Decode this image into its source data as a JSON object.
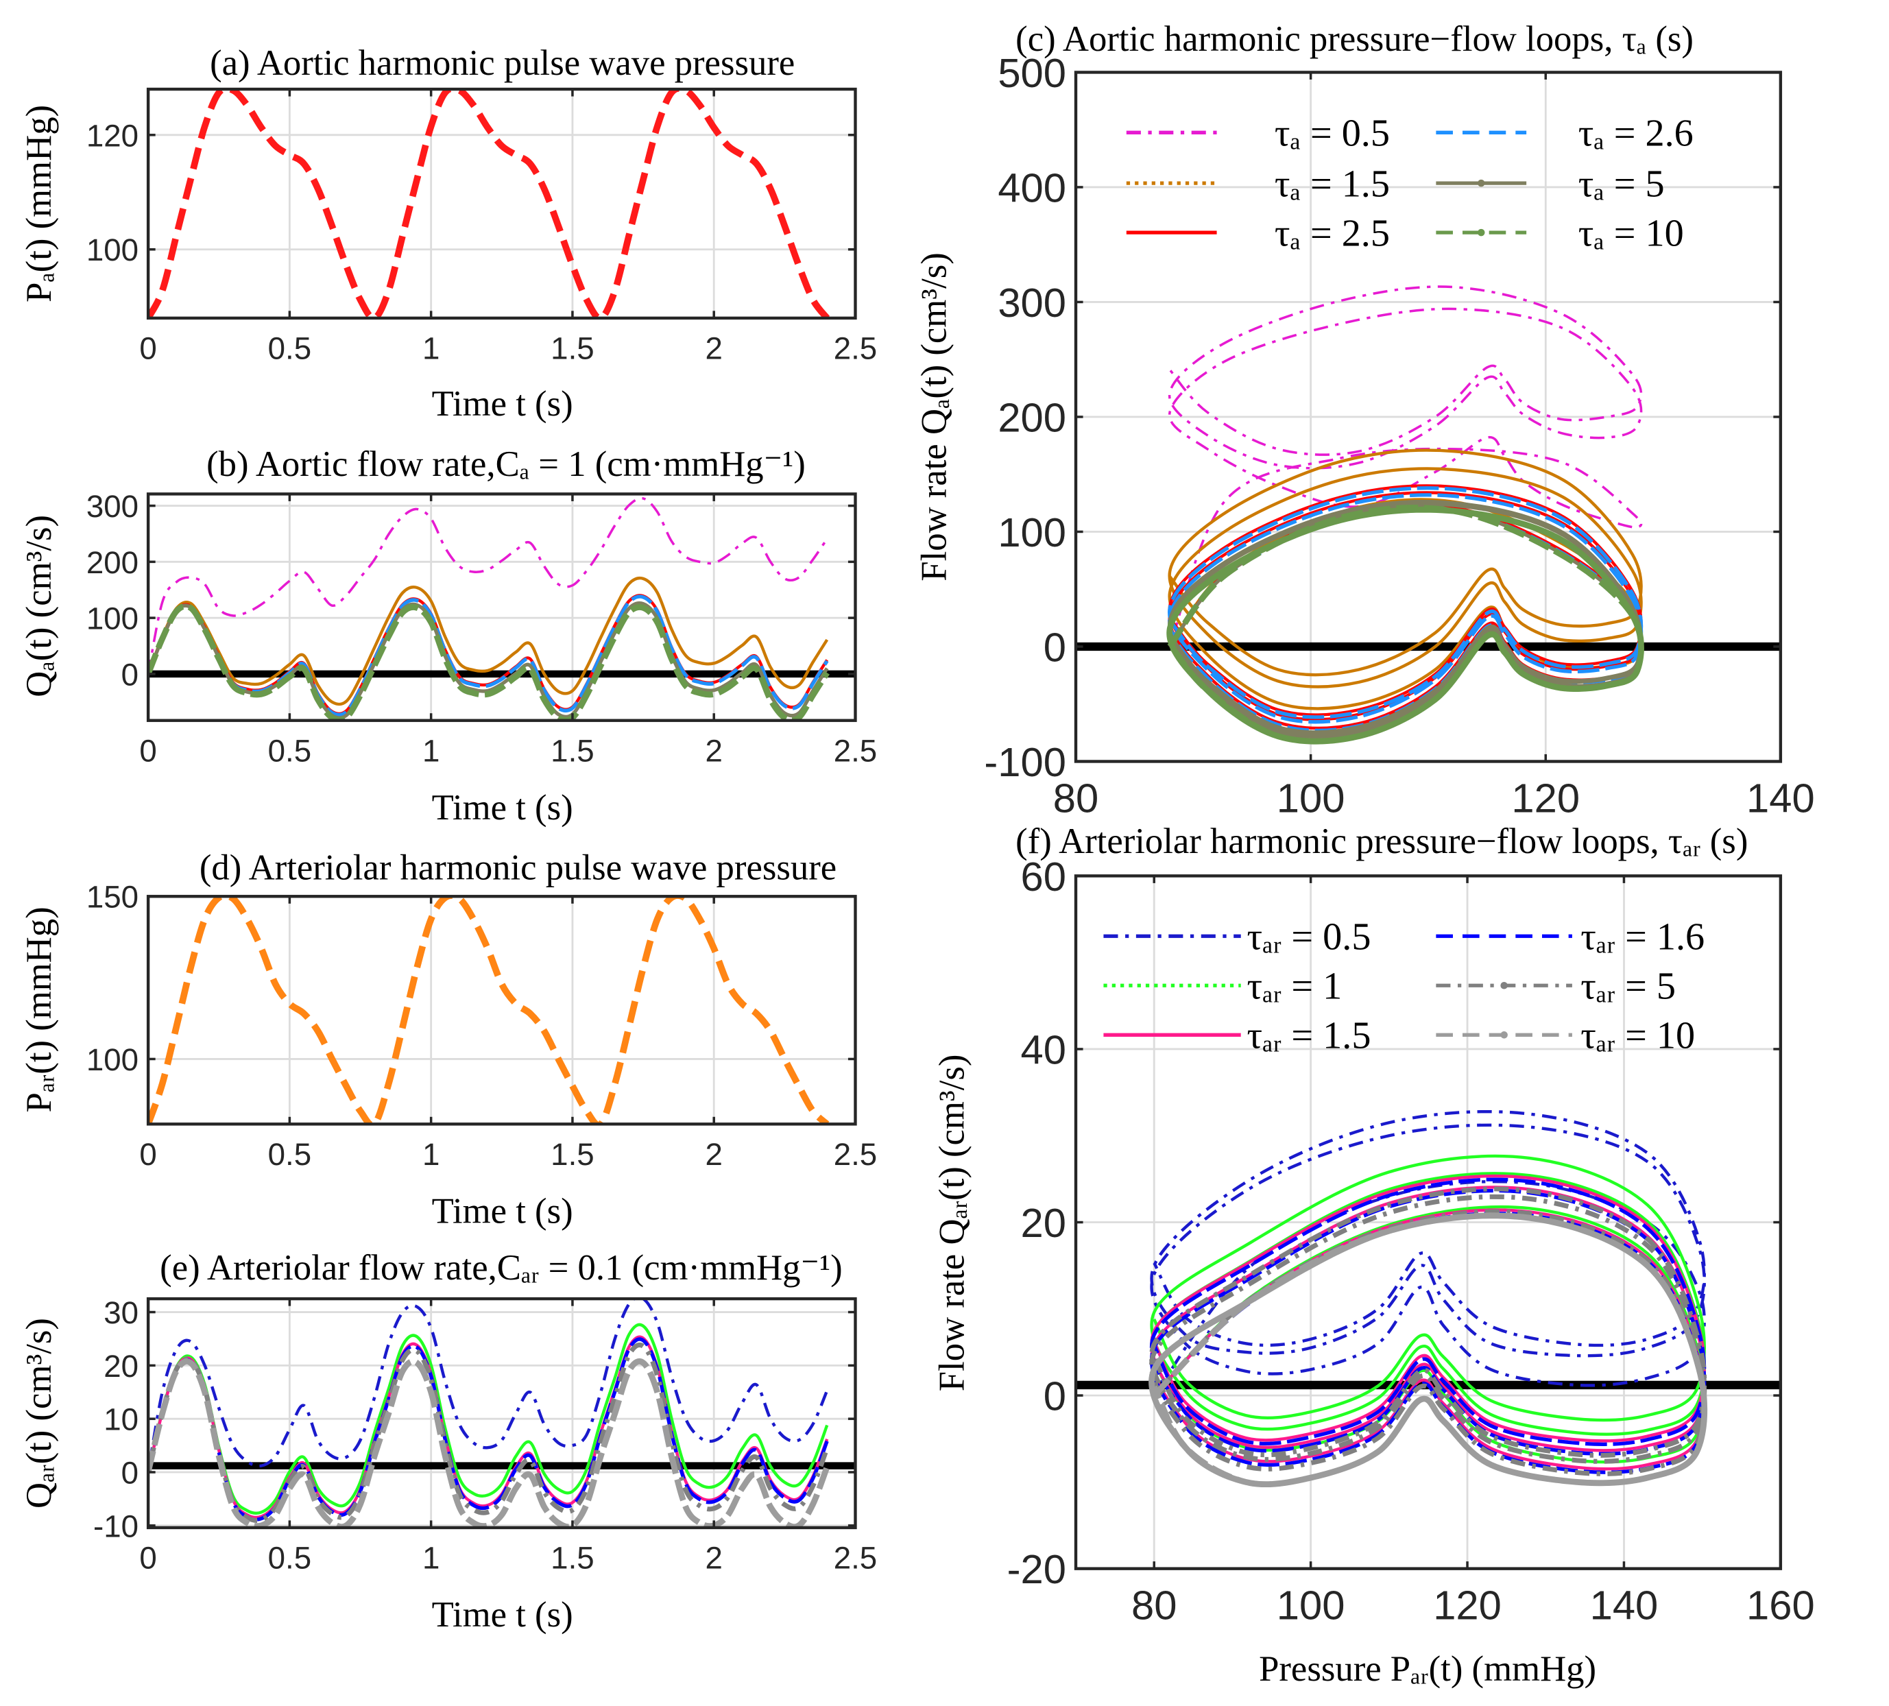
{
  "time_s": [
    0,
    0.05,
    0.1,
    0.15,
    0.2,
    0.25,
    0.3,
    0.35,
    0.4,
    0.45,
    0.5,
    0.55,
    0.6,
    0.65,
    0.7,
    0.75,
    0.8,
    0.85,
    0.9,
    0.95,
    1.0,
    1.05,
    1.1,
    1.15,
    1.2,
    1.25,
    1.3,
    1.35,
    1.4,
    1.45,
    1.5,
    1.55,
    1.6,
    1.65,
    1.7,
    1.75,
    1.8,
    1.85,
    1.9,
    1.95,
    2.0,
    2.05,
    2.1,
    2.15,
    2.2,
    2.25,
    2.3,
    2.35,
    2.4
  ],
  "chart_data": [
    {
      "id": "a",
      "type": "line",
      "title": "(a) Aortic harmonic pulse wave pressure",
      "xlabel": "Time t (s)",
      "ylabel": "Pₐ(t) (mmHg)",
      "xlim": [
        0,
        2.5
      ],
      "ylim": [
        88,
        128
      ],
      "xticks": [
        0,
        0.5,
        1,
        1.5,
        2,
        2.5
      ],
      "yticks": [
        100,
        120
      ],
      "grid": true,
      "ref_line": null,
      "series": [
        {
          "name": "Pₐ(t)",
          "color": "#ff1a1a",
          "line_style": "dash",
          "y": [
            88,
            92.8,
            102.5,
            112.2,
            121.5,
            127.4,
            127.8,
            125.2,
            121.3,
            118.1,
            116.5,
            115,
            110.6,
            104.1,
            97.2,
            91.2,
            88,
            92.8,
            102.5,
            112.2,
            121.5,
            127.4,
            127.8,
            125.2,
            121.3,
            118.1,
            116.5,
            115,
            110.6,
            104.1,
            97.2,
            91.2,
            88,
            92.8,
            102.5,
            112.2,
            121.5,
            127.4,
            127.8,
            125.2,
            121.3,
            118.1,
            116.5,
            115,
            110.6,
            104.1,
            97.2,
            91.2,
            88
          ]
        }
      ]
    },
    {
      "id": "b",
      "type": "line",
      "title": "(b) Aortic flow rate,Cₐ = 1 (cm·mmHg⁻¹)",
      "xlabel": "Time t (s)",
      "ylabel": "Qₐ(t) (cm³/s)",
      "xlim": [
        0,
        2.5
      ],
      "ylim": [
        -83,
        321
      ],
      "xticks": [
        0,
        0.5,
        1,
        1.5,
        2,
        2.5
      ],
      "yticks": [
        0,
        100,
        200,
        300
      ],
      "grid": true,
      "ref_line": 0,
      "series": [
        {
          "name": "τₐ = 0.5",
          "color": "#e61ad1",
          "line_style": "dashdot",
          "y": [
            0,
            128,
            164,
            172,
            160,
            116,
            104,
            110,
            124,
            144,
            166,
            182,
            152,
            122,
            140,
            172,
            204,
            249,
            281,
            294,
            277,
            225,
            192,
            182,
            186,
            202,
            221,
            234,
            192,
            160,
            158,
            184,
            221,
            265,
            301,
            313,
            289,
            237,
            209,
            200,
            198,
            212,
            233,
            243,
            200,
            170,
            172,
            204,
            241
          ]
        },
        {
          "name": "τₐ = 1.5",
          "color": "#cc7a00",
          "line_style": "dotted",
          "y": [
            0,
            66,
            117,
            126,
            89,
            39,
            -7,
            -17,
            -17,
            -3,
            17,
            33,
            -20,
            -50,
            -49,
            -7,
            47,
            101,
            145,
            154,
            130,
            66,
            19,
            7,
            6,
            19,
            39,
            54,
            0,
            -31,
            -30,
            11,
            65,
            117,
            161,
            170,
            145,
            80,
            33,
            20,
            19,
            32,
            51,
            66,
            12,
            -20,
            -20,
            21,
            61
          ]
        },
        {
          "name": "τₐ = 2.5",
          "color": "#ff0000",
          "line_style": "solid",
          "y": [
            0,
            64,
            114,
            121,
            83,
            32,
            -15,
            -27,
            -28,
            -16,
            4,
            19,
            -35,
            -67,
            -66,
            -25,
            28,
            81,
            124,
            133,
            107,
            43,
            -5,
            -17,
            -19,
            -7,
            13,
            27,
            -27,
            -59,
            -59,
            -18,
            35,
            87,
            130,
            139,
            113,
            48,
            0,
            -13,
            -15,
            -2,
            17,
            31,
            -24,
            -55,
            -55,
            -15,
            25
          ]
        },
        {
          "name": "τₐ = 2.6",
          "color": "#1e90ff",
          "line_style": "dash",
          "y": [
            0,
            62,
            112,
            119,
            81,
            30,
            -17,
            -29,
            -30,
            -18,
            2,
            17,
            -37,
            -69,
            -68,
            -27,
            26,
            79,
            122,
            131,
            105,
            41,
            -7,
            -19,
            -21,
            -9,
            11,
            25,
            -29,
            -61,
            -61,
            -20,
            33,
            85,
            128,
            137,
            111,
            46,
            -2,
            -15,
            -17,
            -4,
            15,
            29,
            -26,
            -57,
            -57,
            -17,
            23
          ]
        },
        {
          "name": "τₐ = 5",
          "color": "#7f7f5f",
          "line_style": "solid",
          "marker": "dot",
          "y": [
            0,
            63,
            113,
            119,
            80,
            29,
            -19,
            -32,
            -33,
            -21,
            -2,
            12,
            -42,
            -74,
            -74,
            -34,
            19,
            72,
            115,
            123,
            97,
            32,
            -16,
            -28,
            -30,
            -18,
            1,
            15,
            -40,
            -72,
            -72,
            -31,
            22,
            74,
            117,
            125,
            99,
            34,
            -14,
            -27,
            -29,
            -17,
            2,
            16,
            -38,
            -70,
            -70,
            -30,
            10
          ]
        },
        {
          "name": "τₐ = 10",
          "color": "#6a994c",
          "line_style": "dash",
          "marker": "dot",
          "y": [
            0,
            63,
            112,
            118,
            79,
            27,
            -21,
            -34,
            -36,
            -24,
            -5,
            9,
            -46,
            -78,
            -78,
            -38,
            15,
            67,
            110,
            118,
            92,
            27,
            -21,
            -34,
            -36,
            -24,
            -5,
            9,
            -46,
            -78,
            -78,
            -38,
            15,
            67,
            110,
            118,
            92,
            27,
            -21,
            -34,
            -36,
            -24,
            -5,
            9,
            -46,
            -78,
            -78,
            -38,
            2
          ]
        }
      ]
    },
    {
      "id": "c",
      "type": "line",
      "title": "(c) Aortic harmonic pressure−flow loops, τₐ (s)",
      "xlabel": "",
      "ylabel": "Flow rate Qₐ(t) (cm³/s)",
      "xlim": [
        80,
        140
      ],
      "ylim": [
        -100,
        500
      ],
      "xticks": [
        80,
        100,
        120,
        140
      ],
      "yticks": [
        -100,
        0,
        100,
        200,
        300,
        400,
        500
      ],
      "grid": true,
      "ref_line": 0,
      "x_from_chart": 0,
      "y_from_chart": 1,
      "legend": {
        "location": "top-left",
        "columns": 2
      }
    },
    {
      "id": "d",
      "type": "line",
      "title": "(d) Arteriolar harmonic pulse wave pressure",
      "xlabel": "Time t (s)",
      "ylabel": "Pₐᵣ(t) (mmHg)",
      "xlim": [
        0,
        2.5
      ],
      "ylim": [
        80,
        150
      ],
      "xticks": [
        0,
        0.5,
        1,
        1.5,
        2,
        2.5
      ],
      "yticks": [
        100,
        150
      ],
      "grid": true,
      "ref_line": null,
      "series": [
        {
          "name": "Pₐᵣ(t)",
          "color": "#ff8514",
          "line_style": "dash",
          "y": [
            80,
            92.4,
            110,
            128,
            143,
            149.6,
            149.3,
            143,
            134,
            123,
            117,
            114,
            108.6,
            100,
            91.7,
            84,
            80,
            92.4,
            110,
            128,
            143,
            149.6,
            149.3,
            143,
            134,
            123,
            117,
            114,
            108.6,
            100,
            91.7,
            84,
            80,
            92.4,
            110,
            128,
            143,
            149.6,
            149.3,
            143,
            134,
            123,
            117,
            114,
            108.6,
            100,
            91.7,
            84,
            80
          ]
        }
      ]
    },
    {
      "id": "e",
      "type": "line",
      "title": "(e) Arteriolar flow rate,Cₐᵣ = 0.1 (cm·mmHg⁻¹)",
      "xlabel": "Time t (s)",
      "ylabel": "Qₐᵣ(t) (cm³/s)",
      "xlim": [
        0,
        2.5
      ],
      "ylim": [
        -10.4,
        32.5
      ],
      "xticks": [
        0,
        0.5,
        1,
        1.5,
        2,
        2.5
      ],
      "yticks": [
        -10,
        0,
        10,
        20,
        30
      ],
      "grid": true,
      "ref_line": 1.2,
      "series": [
        {
          "name": "τₐᵣ = 0.5",
          "color": "#1a1acc",
          "line_style": "dashdot",
          "y": [
            0,
            15,
            23,
            24.5,
            20,
            12,
            5,
            2,
            1.2,
            3,
            8,
            12.5,
            6,
            3,
            2.8,
            6,
            14,
            24,
            30,
            31,
            27,
            17,
            9,
            5.5,
            4.6,
            6,
            11,
            15,
            9,
            5.5,
            5,
            7,
            15,
            25,
            31.5,
            32.5,
            28,
            18,
            10,
            6.5,
            5.9,
            8,
            13,
            16.4,
            10,
            6.5,
            6,
            9,
            15.3
          ]
        },
        {
          "name": "τₐᵣ = 1",
          "color": "#22ff22",
          "line_style": "dotted",
          "y": [
            0,
            11.4,
            19.7,
            21.6,
            16.4,
            4.7,
            -4.5,
            -7.2,
            -7.5,
            -5.2,
            0.1,
            2.8,
            -3,
            -5.7,
            -6,
            -1.8,
            7.4,
            15.6,
            23.8,
            25.4,
            20.1,
            8.2,
            -1.1,
            -4,
            -4.3,
            -2.2,
            3,
            5.6,
            -0.3,
            -3.2,
            -3.6,
            0.5,
            9.6,
            17.7,
            25.8,
            27.4,
            22,
            10.1,
            0.7,
            -2.3,
            -2.7,
            -0.6,
            4.4,
            6.9,
            1.1,
            -1.9,
            -2.3,
            1.7,
            8.8
          ]
        },
        {
          "name": "τₐᵣ = 1.5",
          "color": "#ff1a8c",
          "line_style": "solid",
          "y": [
            0,
            11.2,
            19.5,
            21.2,
            15.9,
            4.1,
            -5.2,
            -8,
            -8.3,
            -6.1,
            -1,
            1.7,
            -4.1,
            -7,
            -7.3,
            -3.2,
            5.9,
            14,
            22.2,
            23.8,
            18.4,
            6.5,
            -2.9,
            -5.8,
            -6.2,
            -4.1,
            1,
            3.5,
            -2.4,
            -5.3,
            -5.7,
            -1.6,
            7.4,
            15.5,
            23.5,
            25.1,
            19.7,
            7.7,
            -1.7,
            -4.7,
            -5.1,
            -3.1,
            2,
            4.5,
            -1.5,
            -4.4,
            -4.9,
            -0.8,
            6.2
          ]
        },
        {
          "name": "τₐᵣ = 1.6",
          "color": "#0000ff",
          "line_style": "dash",
          "y": [
            0,
            10.8,
            19.1,
            20.8,
            15.5,
            3.7,
            -5.6,
            -8.4,
            -8.7,
            -6.5,
            -1.4,
            1.3,
            -4.5,
            -7.4,
            -7.7,
            -3.6,
            5.5,
            13.6,
            21.8,
            23.4,
            18,
            6.1,
            -3.3,
            -6.2,
            -6.6,
            -4.5,
            0.6,
            3.1,
            -2.8,
            -5.7,
            -6.1,
            -2,
            7,
            15.1,
            23.1,
            24.7,
            19.3,
            7.3,
            -2.1,
            -5.1,
            -5.5,
            -3.5,
            1.6,
            4.1,
            -1.9,
            -4.8,
            -5.3,
            -1.2,
            5.8
          ]
        },
        {
          "name": "τₐᵣ = 5",
          "color": "#808080",
          "line_style": "dashdot",
          "marker": "dot",
          "y": [
            0,
            11.2,
            19.3,
            21,
            15.6,
            3.8,
            -5.6,
            -8.5,
            -8.9,
            -6.7,
            -1.6,
            1,
            -4.9,
            -7.8,
            -8.2,
            -4.1,
            4.9,
            13,
            21.1,
            22.7,
            17.3,
            5.3,
            -4.1,
            -7,
            -7.5,
            -5.4,
            -0.4,
            2.2,
            -3.7,
            -6.7,
            -7.1,
            -3.1,
            5.9,
            14,
            22,
            23.6,
            18.1,
            6.1,
            -3.3,
            -6.3,
            -6.8,
            -4.7,
            0.3,
            2.8,
            -3.1,
            -6.1,
            -6.6,
            -2.6,
            4.5
          ]
        },
        {
          "name": "τₐᵣ = 10",
          "color": "#9c9c9c",
          "line_style": "dash",
          "marker": "dot",
          "y": [
            0,
            11,
            19,
            20.5,
            15,
            3,
            -6.5,
            -9.5,
            -10,
            -8,
            -3,
            -0.5,
            -6.5,
            -9.5,
            -10,
            -6,
            3,
            11,
            19,
            20.5,
            15,
            3,
            -6.5,
            -9.5,
            -10,
            -8,
            -3,
            -0.5,
            -6.5,
            -9.5,
            -10,
            -6,
            3,
            11,
            19,
            20.5,
            15,
            3,
            -6.5,
            -9.5,
            -10,
            -8,
            -3,
            -0.5,
            -6.5,
            -9.5,
            -10,
            -6,
            1
          ]
        }
      ]
    },
    {
      "id": "f",
      "type": "line",
      "title": "(f) Arteriolar harmonic pressure−flow loops, τₐᵣ (s)",
      "xlabel": "Pressure Pₐᵣ(t) (mmHg)",
      "ylabel": "Flow rate Qₐᵣ(t) (cm³/s)",
      "xlim": [
        70,
        160
      ],
      "ylim": [
        -20,
        60
      ],
      "xticks": [
        80,
        100,
        120,
        140,
        160
      ],
      "yticks": [
        -20,
        0,
        20,
        40,
        60
      ],
      "grid": true,
      "ref_line": 1.2,
      "x_from_chart": 3,
      "y_from_chart": 4,
      "legend": {
        "location": "top-left",
        "columns": 2
      }
    }
  ]
}
